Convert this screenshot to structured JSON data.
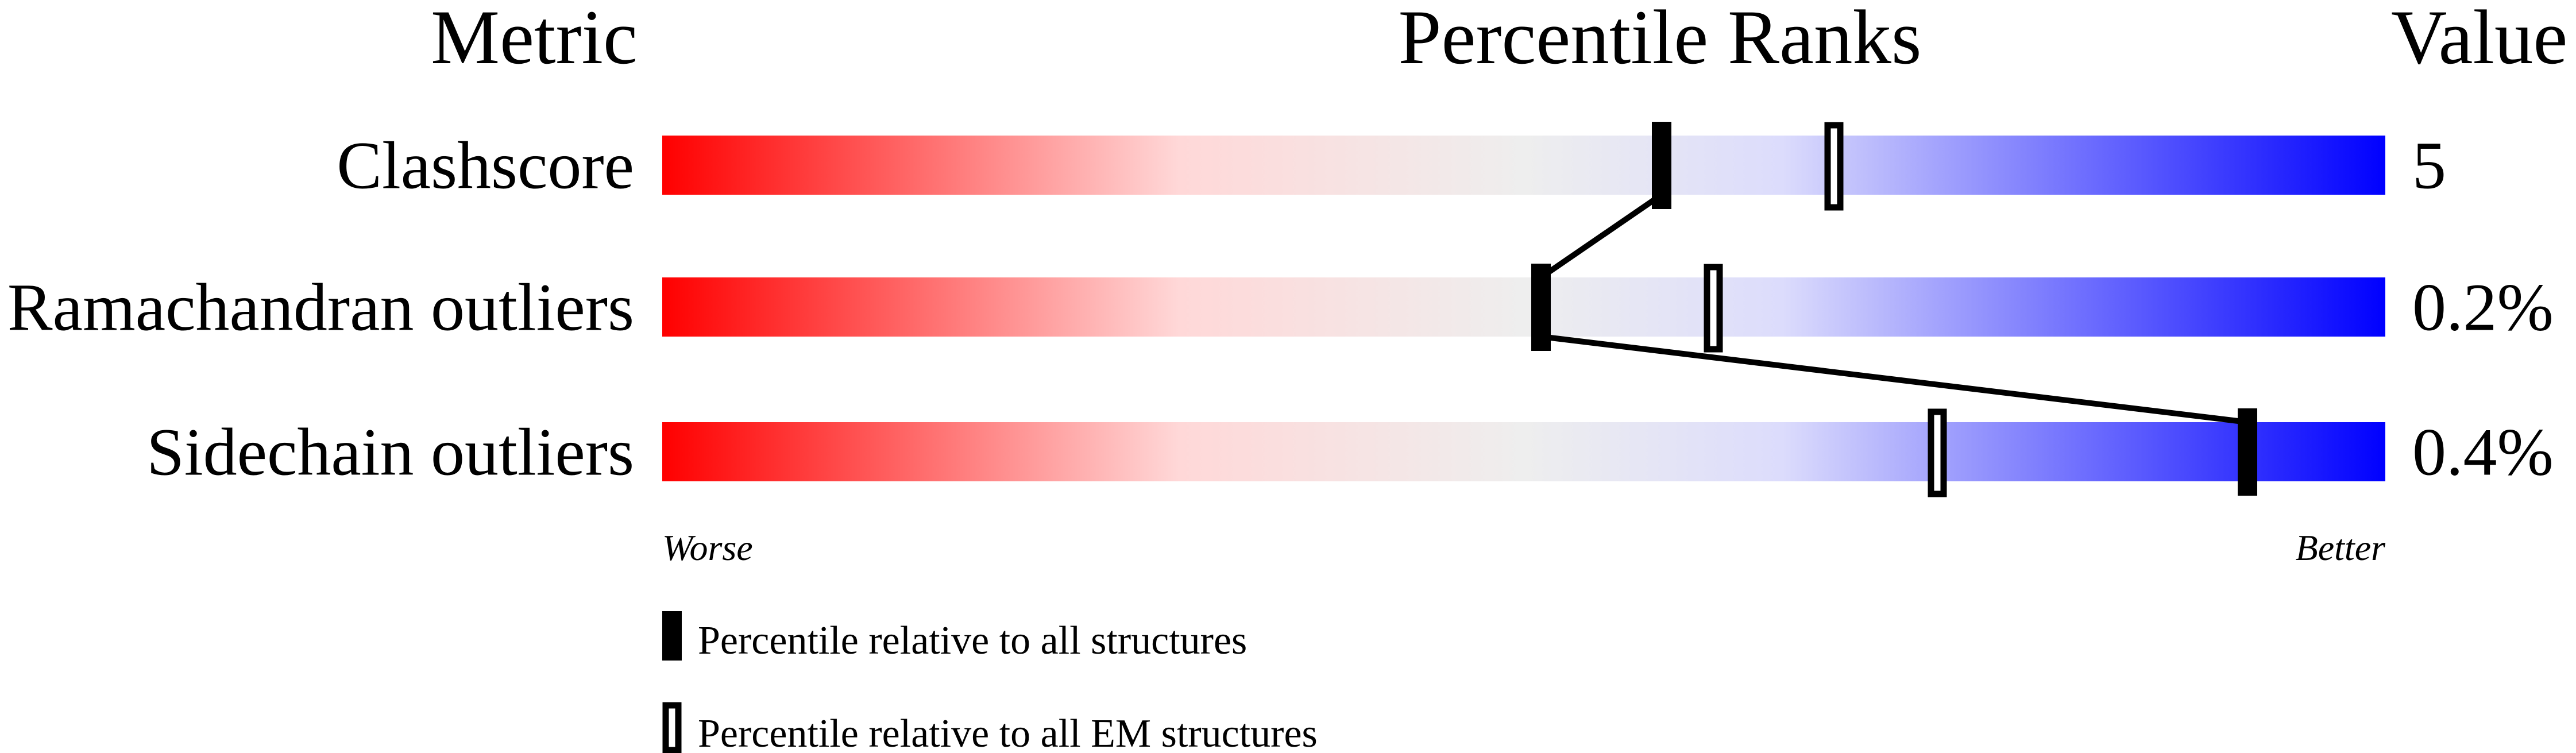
{
  "chart_data": {
    "type": "percentile-slider",
    "headers": {
      "metric": "Metric",
      "ranks": "Percentile Ranks",
      "value": "Value"
    },
    "xlim": [
      0,
      100
    ],
    "axis_labels": {
      "left": "Worse",
      "right": "Better"
    },
    "gradient_colors": [
      "#ff0000",
      "#ffd8d8",
      "#eeeeee",
      "#dcdcfc",
      "#0000ff"
    ],
    "rows": [
      {
        "metric": "Clashscore",
        "value": "5",
        "percentile_all": 58,
        "percentile_em": 68
      },
      {
        "metric": "Ramachandran outliers",
        "value": "0.2%",
        "percentile_all": 51,
        "percentile_em": 61
      },
      {
        "metric": "Sidechain outliers",
        "value": "0.4%",
        "percentile_all": 92,
        "percentile_em": 74
      }
    ],
    "legend": [
      {
        "marker": "filled",
        "label": "Percentile relative to all structures"
      },
      {
        "marker": "open",
        "label": "Percentile relative to all EM structures"
      }
    ]
  }
}
